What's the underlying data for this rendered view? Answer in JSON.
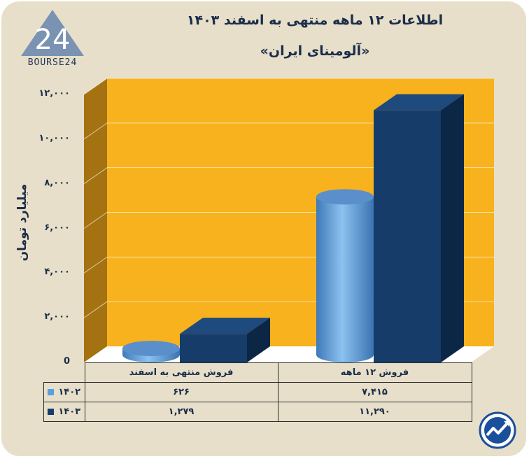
{
  "header": {
    "title": "اطلاعات ۱۲ ماهه منتهی به اسفند ۱۴۰۳",
    "subtitle": "«آلومینای ایران»",
    "logo_text": "BOURSE24",
    "logo_mark": "24"
  },
  "colors": {
    "card_bg": "#e7dfc9",
    "plot_bg": "#f7b21d",
    "wall_side": "#a57212",
    "floor": "#ffffff",
    "series_1402": "#5aa0de",
    "series_1403": "#163c69",
    "text": "#1b2d4a"
  },
  "chart_data": {
    "type": "bar",
    "title": "اطلاعات ۱۲ ماهه منتهی به اسفند ۱۴۰۳",
    "subtitle": "«آلومینای ایران»",
    "ylabel": "میلیارد تومان",
    "ylim": [
      0,
      12000
    ],
    "yticks": [
      0,
      2000,
      4000,
      6000,
      8000,
      10000,
      12000
    ],
    "ytick_labels": [
      "0",
      "۲,۰۰۰",
      "۴,۰۰۰",
      "۶,۰۰۰",
      "۸,۰۰۰",
      "۱۰,۰۰۰",
      "۱۲,۰۰۰"
    ],
    "categories": [
      "فروش منتهی به  اسفند",
      "فروش ۱۲ ماهه"
    ],
    "series": [
      {
        "name": "۱۴۰۲",
        "values": [
          626,
          7415
        ],
        "value_labels": [
          "۶۲۶",
          "۷,۴۱۵"
        ],
        "shape": "cylinder"
      },
      {
        "name": "۱۴۰۳",
        "values": [
          1279,
          11290
        ],
        "value_labels": [
          "۱,۲۷۹",
          "۱۱,۲۹۰"
        ],
        "shape": "box"
      }
    ],
    "grid": true,
    "legend": "data table"
  },
  "badge": {
    "icon": "trend-arrow-icon"
  }
}
